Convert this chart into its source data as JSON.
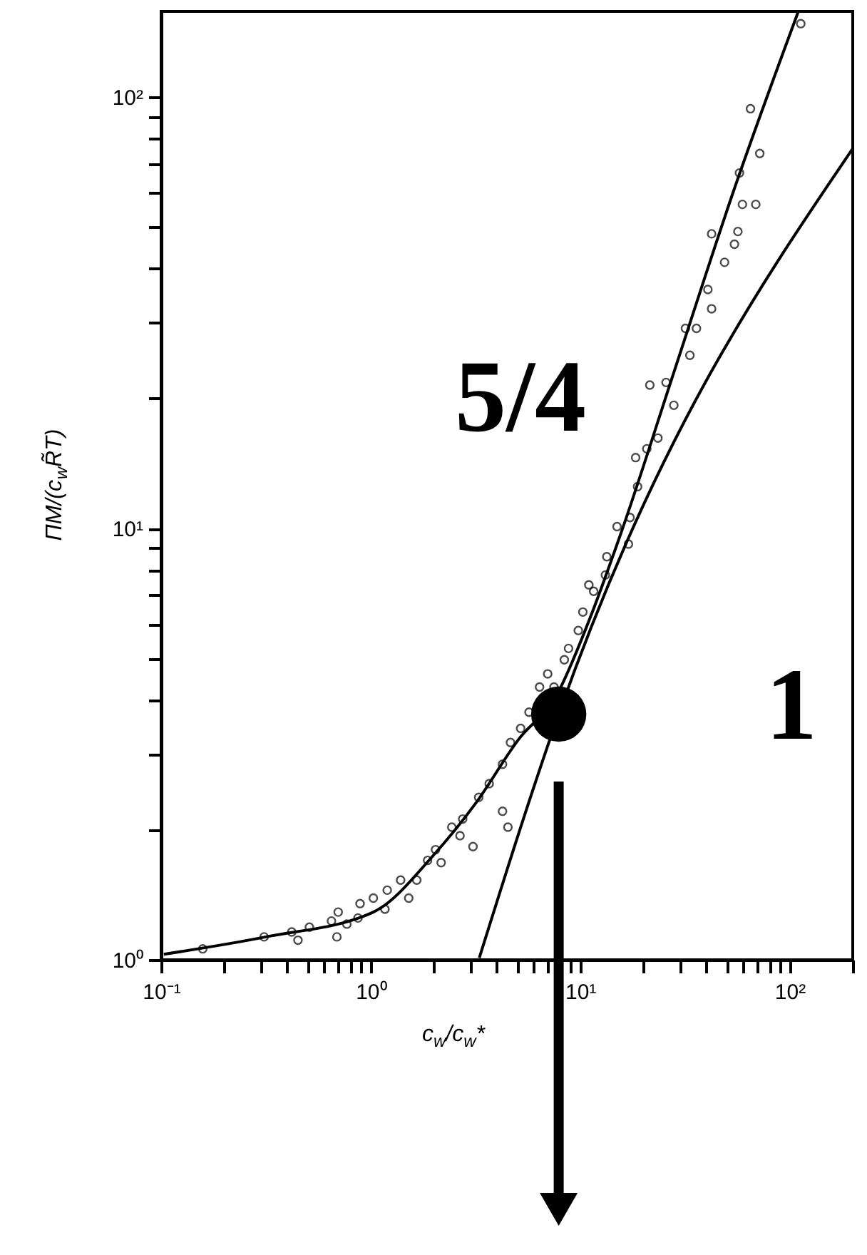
{
  "chart_data": {
    "type": "scatter",
    "xlabel": "c$_{w}$/c$_{w}$*",
    "ylabel": "ΠM/(c$_{w}$R̃T)",
    "log": "xy",
    "grid": false,
    "xlim": [
      0.1,
      200
    ],
    "ylim": [
      1,
      158
    ],
    "xticks": [
      {
        "value": 0.1,
        "label": "10⁻¹"
      },
      {
        "value": 0.2,
        "label": null
      },
      {
        "value": 0.3,
        "label": null
      },
      {
        "value": 0.4,
        "label": null
      },
      {
        "value": 0.5,
        "label": null
      },
      {
        "value": 0.6,
        "label": null
      },
      {
        "value": 0.7,
        "label": null
      },
      {
        "value": 0.8,
        "label": null
      },
      {
        "value": 0.9,
        "label": null
      },
      {
        "value": 1,
        "label": "10⁰"
      },
      {
        "value": 2,
        "label": null
      },
      {
        "value": 3,
        "label": null
      },
      {
        "value": 4,
        "label": null
      },
      {
        "value": 5,
        "label": null
      },
      {
        "value": 6,
        "label": null
      },
      {
        "value": 7,
        "label": null
      },
      {
        "value": 8,
        "label": null
      },
      {
        "value": 9,
        "label": null
      },
      {
        "value": 10,
        "label": "10¹"
      },
      {
        "value": 20,
        "label": null
      },
      {
        "value": 30,
        "label": null
      },
      {
        "value": 40,
        "label": null
      },
      {
        "value": 50,
        "label": null
      },
      {
        "value": 60,
        "label": null
      },
      {
        "value": 70,
        "label": null
      },
      {
        "value": 80,
        "label": null
      },
      {
        "value": 90,
        "label": null
      },
      {
        "value": 100,
        "label": "10²"
      },
      {
        "value": 200,
        "label": null
      }
    ],
    "yticks": [
      {
        "value": 1,
        "label": "10⁰"
      },
      {
        "value": 2,
        "label": null
      },
      {
        "value": 3,
        "label": null
      },
      {
        "value": 4,
        "label": null
      },
      {
        "value": 5,
        "label": null
      },
      {
        "value": 6,
        "label": null
      },
      {
        "value": 7,
        "label": null
      },
      {
        "value": 8,
        "label": null
      },
      {
        "value": 9,
        "label": null
      },
      {
        "value": 10,
        "label": "10¹"
      },
      {
        "value": 20,
        "label": null
      },
      {
        "value": 30,
        "label": null
      },
      {
        "value": 40,
        "label": null
      },
      {
        "value": 50,
        "label": null
      },
      {
        "value": 60,
        "label": null
      },
      {
        "value": 70,
        "label": null
      },
      {
        "value": 80,
        "label": null
      },
      {
        "value": 90,
        "label": null
      },
      {
        "value": 100,
        "label": "10²"
      }
    ],
    "annotations": [
      "5/4",
      "1"
    ],
    "series": [
      {
        "marker": "circle",
        "color": "#000000",
        "x": [
          0.158,
          0.31,
          0.42,
          0.45,
          0.51,
          0.65,
          0.7,
          0.69,
          0.77,
          0.87,
          0.89,
          1.03,
          1.17,
          1.2,
          1.39,
          1.52,
          1.66,
          1.87,
          2.04,
          2.17,
          2.44,
          2.67,
          2.75,
          3.08,
          3.28,
          3.68,
          4.26,
          4.52,
          4.26,
          4.65,
          5.2,
          5.7,
          6.4,
          7.0,
          7.5,
          8.4,
          8.8,
          9.8,
          10.3,
          11.0,
          11.6,
          13.2,
          13.4,
          15.0,
          17.0,
          17.3,
          18.8,
          18.4,
          20.8,
          23.5,
          21.5,
          28.0,
          25.7,
          33.4,
          31.8,
          35.9,
          42.4,
          40.7,
          48.9,
          54.5,
          56.6,
          42.4,
          59.5,
          68.9,
          57.6,
          72,
          65,
          113
        ],
        "values": [
          1.06,
          1.13,
          1.16,
          1.11,
          1.19,
          1.23,
          1.29,
          1.13,
          1.21,
          1.25,
          1.35,
          1.39,
          1.31,
          1.45,
          1.53,
          1.39,
          1.53,
          1.7,
          1.8,
          1.68,
          2.03,
          1.94,
          2.12,
          1.83,
          2.38,
          2.56,
          2.21,
          2.03,
          2.84,
          3.19,
          3.44,
          3.75,
          4.29,
          4.6,
          4.29,
          4.96,
          5.27,
          5.8,
          6.4,
          7.4,
          7.15,
          7.8,
          8.6,
          10.1,
          9.2,
          10.6,
          12.5,
          14.6,
          15.3,
          16.2,
          21.5,
          19.3,
          21.8,
          25.2,
          29.1,
          29.1,
          32.3,
          35.8,
          41.4,
          45.6,
          48.8,
          48.2,
          56.4,
          56.4,
          66.7,
          74,
          94,
          148
        ]
      },
      {
        "type": "line",
        "line_style": "solid",
        "color": "#000000",
        "x": [
          0.103,
          0.316,
          1.03,
          2.0,
          3.16,
          5.1,
          7.7,
          11,
          15.6,
          28,
          54,
          110
        ],
        "values": [
          1.03,
          1.13,
          1.29,
          1.75,
          2.3,
          3.25,
          4.1,
          6.1,
          9.7,
          23,
          60.6,
          158
        ]
      },
      {
        "type": "line",
        "line_style": "solid",
        "color": "#000000",
        "x": [
          3.3,
          7.9,
          200
        ],
        "values": [
          1.01,
          3.71,
          76
        ]
      },
      {
        "type": "bubble",
        "color": "#000000",
        "x": [
          7.9
        ],
        "values": [
          3.71
        ],
        "sizes": [
          1
        ]
      }
    ]
  }
}
